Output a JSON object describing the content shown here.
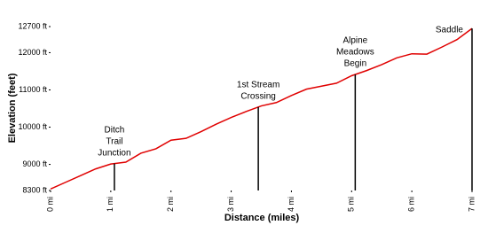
{
  "chart_data": {
    "type": "line",
    "x_label": "Distance (miles)",
    "y_label": "Elevation (feet)",
    "x": [
      0,
      0.25,
      0.5,
      0.75,
      1,
      1.25,
      1.5,
      1.75,
      2,
      2.25,
      2.5,
      2.75,
      3,
      3.25,
      3.5,
      3.75,
      4,
      4.25,
      4.5,
      4.75,
      5,
      5.25,
      5.5,
      5.75,
      6,
      6.25,
      6.5,
      6.75,
      7
    ],
    "series": [
      {
        "color": "#e00000",
        "values": [
          8340,
          8520,
          8700,
          8880,
          9010,
          9060,
          9300,
          9420,
          9650,
          9700,
          9880,
          10080,
          10260,
          10420,
          10570,
          10660,
          10850,
          11020,
          11100,
          11180,
          11380,
          11520,
          11680,
          11860,
          11970,
          11960,
          12150,
          12350,
          12650
        ]
      }
    ],
    "xlim": [
      0,
      7
    ],
    "xticks": [
      {
        "value": 0,
        "label": "0 mi"
      },
      {
        "value": 1,
        "label": "1 mi"
      },
      {
        "value": 2,
        "label": "2 mi"
      },
      {
        "value": 3,
        "label": "3 mi"
      },
      {
        "value": 4,
        "label": "4 mi"
      },
      {
        "value": 5,
        "label": "5 mi"
      },
      {
        "value": 6,
        "label": "6 mi"
      },
      {
        "value": 7,
        "label": "7 mi"
      }
    ],
    "ylim": [
      8300,
      12700
    ],
    "yticks": [
      {
        "value": 8300,
        "label": "8300 ft"
      },
      {
        "value": 9000,
        "label": "9000 ft"
      },
      {
        "value": 10000,
        "label": "10000 ft"
      },
      {
        "value": 11000,
        "label": "11000 ft"
      },
      {
        "value": 12000,
        "label": "12000 ft"
      },
      {
        "value": 12700,
        "label": "12700 ft"
      }
    ],
    "annotations": [
      {
        "x": 1.06,
        "lines": [
          "Ditch",
          "Trail",
          "Junction"
        ]
      },
      {
        "x": 3.45,
        "lines": [
          "1st Stream",
          "Crossing"
        ]
      },
      {
        "x": 5.06,
        "lines": [
          "Alpine",
          "Meadows",
          "Begin"
        ]
      },
      {
        "x": 7,
        "lines": [
          "Saddle"
        ]
      }
    ]
  }
}
